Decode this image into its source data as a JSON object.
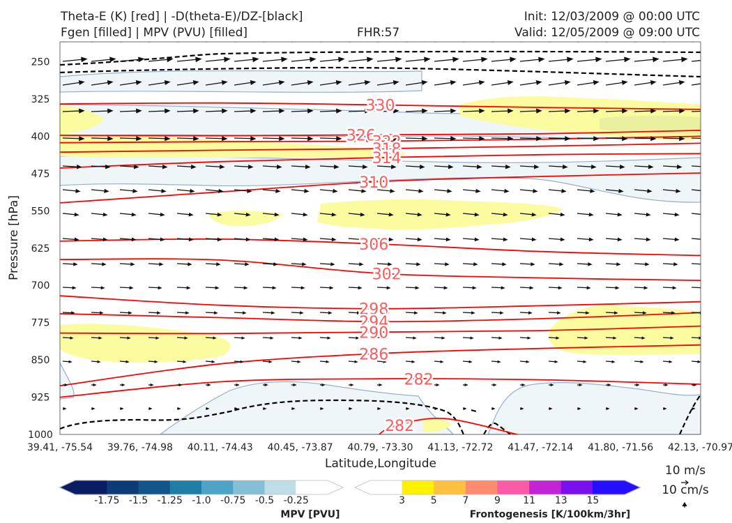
{
  "header": {
    "line1_left": "Theta-E (K) [red] | -D(theta-E)/DZ-[black]",
    "line2_left": "Fgen [filled] | MPV (PVU) [filled]",
    "fhr": "FHR:57",
    "init": "Init: 12/03/2009 @ 00:00 UTC",
    "valid": "Valid: 12/05/2009 @ 09:00 UTC"
  },
  "colors": {
    "theta_e": "#ff0000",
    "contour_label": "#ff5b5b",
    "mpv_outline": "#9aaed0",
    "mpv_fill": "#eef6f8",
    "fgen_fill": "#fbfba0",
    "fgen_strong": "#e9f0a0",
    "wind_vector": "#111111",
    "dashed": "#000000"
  },
  "chart_data": {
    "type": "cross-section",
    "xlabel": "Latitude,Longitude",
    "ylabel": "Pressure [hPa]",
    "x_ticks": [
      "39.41, -75.54",
      "39.76, -74.98",
      "40.11, -74.43",
      "40.45, -73.87",
      "40.79, -73.30",
      "41.13, -72.72",
      "41.47, -72.14",
      "41.80, -71.56",
      "42.13, -70.97"
    ],
    "y_ticks": [
      250,
      325,
      400,
      475,
      550,
      625,
      700,
      775,
      850,
      925,
      1000
    ],
    "ylim": [
      1000,
      210
    ],
    "y_inverted": true,
    "theta_e_contours": [
      {
        "value": 330,
        "label": "330",
        "label_x": 0.5,
        "points": [
          [
            0,
            335
          ],
          [
            0.25,
            333
          ],
          [
            0.5,
            337
          ],
          [
            0.75,
            342
          ],
          [
            1,
            346
          ]
        ]
      },
      {
        "value": 326,
        "label": "326",
        "label_x": 0.47,
        "points": [
          [
            0,
            398
          ],
          [
            0.25,
            399
          ],
          [
            0.5,
            397
          ],
          [
            0.75,
            395
          ],
          [
            1,
            388
          ]
        ]
      },
      {
        "value": 322,
        "label": "322",
        "label_x": 0.51,
        "points": [
          [
            0,
            413
          ],
          [
            0.25,
            411
          ],
          [
            0.5,
            410
          ],
          [
            0.75,
            406
          ],
          [
            1,
            400
          ]
        ]
      },
      {
        "value": 318,
        "label": "318",
        "label_x": 0.51,
        "points": [
          [
            0,
            432
          ],
          [
            0.25,
            428
          ],
          [
            0.5,
            425
          ],
          [
            0.75,
            420
          ],
          [
            1,
            414
          ]
        ]
      },
      {
        "value": 314,
        "label": "314",
        "label_x": 0.51,
        "points": [
          [
            0,
            464
          ],
          [
            0.25,
            451
          ],
          [
            0.5,
            443
          ],
          [
            0.75,
            437
          ],
          [
            1,
            435
          ]
        ]
      },
      {
        "value": 310,
        "label": "310",
        "label_x": 0.49,
        "points": [
          [
            0,
            534
          ],
          [
            0.25,
            512
          ],
          [
            0.5,
            491
          ],
          [
            0.75,
            481
          ],
          [
            1,
            474
          ]
        ]
      },
      {
        "value": 306,
        "label": "306",
        "label_x": 0.49,
        "points": [
          [
            0,
            611
          ],
          [
            0.25,
            607
          ],
          [
            0.5,
            617
          ],
          [
            0.75,
            632
          ],
          [
            1,
            640
          ]
        ]
      },
      {
        "value": 302,
        "label": "302",
        "label_x": 0.51,
        "points": [
          [
            0,
            648
          ],
          [
            0.25,
            649
          ],
          [
            0.5,
            676
          ],
          [
            0.75,
            685
          ],
          [
            1,
            690
          ]
        ]
      },
      {
        "value": 298,
        "label": "298",
        "label_x": 0.49,
        "points": [
          [
            0,
            721
          ],
          [
            0.25,
            740
          ],
          [
            0.5,
            747
          ],
          [
            0.75,
            741
          ],
          [
            1,
            733
          ]
        ]
      },
      {
        "value": 294,
        "label": "294",
        "label_x": 0.49,
        "points": [
          [
            0,
            757
          ],
          [
            0.25,
            765
          ],
          [
            0.5,
            773
          ],
          [
            0.75,
            767
          ],
          [
            1,
            755
          ]
        ]
      },
      {
        "value": 290,
        "label": "290",
        "label_x": 0.49,
        "points": [
          [
            0,
            796
          ],
          [
            0.25,
            797
          ],
          [
            0.5,
            794
          ],
          [
            0.75,
            791
          ],
          [
            1,
            782
          ]
        ]
      },
      {
        "value": 286,
        "label": "286",
        "label_x": 0.49,
        "points": [
          [
            0,
            902
          ],
          [
            0.25,
            858
          ],
          [
            0.5,
            837
          ],
          [
            0.75,
            827
          ],
          [
            1,
            820
          ]
        ]
      },
      {
        "value": 282,
        "label": "282",
        "label_x": 0.56,
        "points": [
          [
            0,
            925
          ],
          [
            0.25,
            894
          ],
          [
            0.5,
            888
          ],
          [
            0.75,
            890
          ],
          [
            1,
            899
          ]
        ]
      },
      {
        "value": 282,
        "label": "282",
        "label_x": 0.53,
        "points": [
          [
            0.49,
            1010
          ],
          [
            0.52,
            984
          ],
          [
            0.6,
            968
          ],
          [
            0.72,
            1002
          ]
        ]
      }
    ],
    "mpv_colorbar": {
      "title": "MPV [PVU]",
      "ticks": [
        "-1.75",
        "-1.5",
        "-1.25",
        "-1.0",
        "-0.75",
        "-0.5",
        "-0.25"
      ],
      "colors": [
        "#0a1c64",
        "#0d3a78",
        "#11558c",
        "#1f7ea8",
        "#4ea4c6",
        "#85bfd6",
        "#bedde6",
        "#ffffff"
      ]
    },
    "fgen_colorbar": {
      "title": "Frontogenesis [K/100km/3hr]",
      "ticks": [
        "3",
        "5",
        "7",
        "9",
        "11",
        "13",
        "15"
      ],
      "colors": [
        "#ffffff",
        "#fff200",
        "#ffc040",
        "#fd8c6c",
        "#fb5aa6",
        "#c024d4",
        "#7a10ee",
        "#2410ff"
      ]
    },
    "reference_vectors": [
      "10 m/s",
      "10 cm/s"
    ]
  }
}
